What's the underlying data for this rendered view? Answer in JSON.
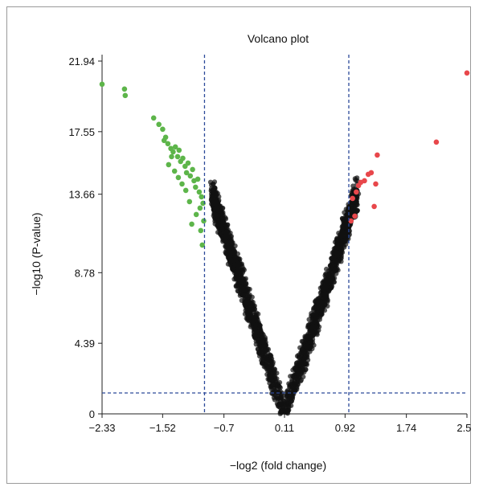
{
  "chart_data": {
    "type": "scatter",
    "title": "Volcano plot",
    "xlabel": "−log2 (fold change)",
    "ylabel": "−log10 (P-value)",
    "xlim": [
      -2.33,
      2.55
    ],
    "ylim": [
      0,
      21.94
    ],
    "xticks": [
      -2.33,
      -1.52,
      -0.7,
      0.11,
      0.92,
      1.74,
      2.55
    ],
    "xtick_labels": [
      "−2.33",
      "−1.52",
      "−0.7",
      "0.11",
      "0.92",
      "1.74",
      "2.55"
    ],
    "yticks": [
      0,
      4.39,
      8.78,
      13.66,
      17.55,
      21.94
    ],
    "ytick_labels": [
      "0",
      "4.39",
      "8.78",
      "13.66",
      "17.55",
      "21.94"
    ],
    "thresholds": {
      "x_low": -0.96,
      "x_high": 0.97,
      "y": 1.3
    },
    "grid": false,
    "colors": {
      "down": "#5db54a",
      "up": "#e8474b",
      "ns": "#111111",
      "threshold": "#2c4a9a",
      "axis": "#222222"
    },
    "series": [
      {
        "name": "",
        "color": "#5db54a",
        "points": [
          [
            -2.33,
            20.5
          ],
          [
            -2.02,
            19.8
          ],
          [
            -2.03,
            20.2
          ],
          [
            -1.64,
            18.4
          ],
          [
            -1.57,
            18.0
          ],
          [
            -1.52,
            17.7
          ],
          [
            -1.48,
            17.2
          ],
          [
            -1.45,
            16.8
          ],
          [
            -1.41,
            16.5
          ],
          [
            -1.38,
            16.3
          ],
          [
            -1.35,
            16.6
          ],
          [
            -1.32,
            16.0
          ],
          [
            -1.3,
            16.4
          ],
          [
            -1.28,
            15.7
          ],
          [
            -1.25,
            15.9
          ],
          [
            -1.22,
            15.4
          ],
          [
            -1.2,
            15.0
          ],
          [
            -1.18,
            15.6
          ],
          [
            -1.15,
            14.8
          ],
          [
            -1.12,
            15.2
          ],
          [
            -1.1,
            14.5
          ],
          [
            -1.08,
            14.1
          ],
          [
            -1.05,
            14.6
          ],
          [
            -1.03,
            13.8
          ],
          [
            -1.0,
            13.5
          ],
          [
            -0.98,
            13.1
          ],
          [
            -1.02,
            12.8
          ],
          [
            -1.07,
            12.4
          ],
          [
            -1.13,
            11.8
          ],
          [
            -1.01,
            11.4
          ],
          [
            -0.97,
            12.0
          ],
          [
            -1.26,
            14.3
          ],
          [
            -1.36,
            15.1
          ],
          [
            -1.44,
            15.5
          ],
          [
            -0.99,
            10.5
          ],
          [
            -1.16,
            13.2
          ],
          [
            -1.21,
            13.9
          ],
          [
            -1.31,
            14.7
          ],
          [
            -1.4,
            16.0
          ],
          [
            -1.5,
            17.0
          ]
        ]
      },
      {
        "name": "",
        "color": "#e8474b",
        "points": [
          [
            2.55,
            21.2
          ],
          [
            2.14,
            16.9
          ],
          [
            1.35,
            16.1
          ],
          [
            1.27,
            15.0
          ],
          [
            1.23,
            14.9
          ],
          [
            1.18,
            14.5
          ],
          [
            1.13,
            14.4
          ],
          [
            1.1,
            14.2
          ],
          [
            1.07,
            13.8
          ],
          [
            1.02,
            13.4
          ],
          [
            1.33,
            14.3
          ],
          [
            1.31,
            12.9
          ],
          [
            1.05,
            12.3
          ],
          [
            1.0,
            12.0
          ]
        ]
      }
    ],
    "ns_model": {
      "curve_k": 13.66,
      "curve_half_width": 0.97,
      "center": 0.11,
      "count": 2200
    }
  }
}
